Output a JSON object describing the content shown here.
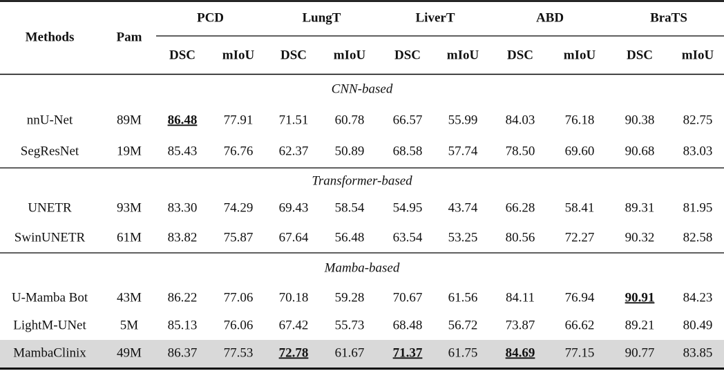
{
  "table": {
    "header": {
      "methods": "Methods",
      "params": "Pam",
      "groups": [
        {
          "name": "PCD",
          "metrics": [
            "DSC",
            "mIoU"
          ]
        },
        {
          "name": "LungT",
          "metrics": [
            "DSC",
            "mIoU"
          ]
        },
        {
          "name": "LiverT",
          "metrics": [
            "DSC",
            "mIoU"
          ]
        },
        {
          "name": "ABD",
          "metrics": [
            "DSC",
            "mIoU"
          ]
        },
        {
          "name": "BraTS",
          "metrics": [
            "DSC",
            "mIoU"
          ]
        }
      ]
    },
    "sections": [
      {
        "label": "CNN-based",
        "rows": [
          {
            "method": "nnU-Net",
            "params": "89M",
            "values": [
              "86.48",
              "77.91",
              "71.51",
              "60.78",
              "66.57",
              "55.99",
              "84.03",
              "76.18",
              "90.38",
              "82.75"
            ],
            "best": [
              0
            ]
          },
          {
            "method": "SegResNet",
            "params": "19M",
            "values": [
              "85.43",
              "76.76",
              "62.37",
              "50.89",
              "68.58",
              "57.74",
              "78.50",
              "69.60",
              "90.68",
              "83.03"
            ],
            "best": []
          }
        ]
      },
      {
        "label": "Transformer-based",
        "rows": [
          {
            "method": "UNETR",
            "params": "93M",
            "values": [
              "83.30",
              "74.29",
              "69.43",
              "58.54",
              "54.95",
              "43.74",
              "66.28",
              "58.41",
              "89.31",
              "81.95"
            ],
            "best": []
          },
          {
            "method": "SwinUNETR",
            "params": "61M",
            "values": [
              "83.82",
              "75.87",
              "67.64",
              "56.48",
              "63.54",
              "53.25",
              "80.56",
              "72.27",
              "90.32",
              "82.58"
            ],
            "best": []
          }
        ]
      },
      {
        "label": "Mamba-based",
        "rows": [
          {
            "method": "U-Mamba Bot",
            "params": "43M",
            "values": [
              "86.22",
              "77.06",
              "70.18",
              "59.28",
              "70.67",
              "61.56",
              "84.11",
              "76.94",
              "90.91",
              "84.23"
            ],
            "best": [
              8
            ]
          },
          {
            "method": "LightM-UNet",
            "params": "5M",
            "values": [
              "85.13",
              "76.06",
              "67.42",
              "55.73",
              "68.48",
              "56.72",
              "73.87",
              "66.62",
              "89.21",
              "80.49"
            ],
            "best": []
          },
          {
            "method": "MambaClinix",
            "params": "49M",
            "values": [
              "86.37",
              "77.53",
              "72.78",
              "61.67",
              "71.37",
              "61.75",
              "84.69",
              "77.15",
              "90.77",
              "83.85"
            ],
            "best": [
              2,
              4,
              6
            ],
            "highlight": true
          }
        ]
      }
    ]
  }
}
